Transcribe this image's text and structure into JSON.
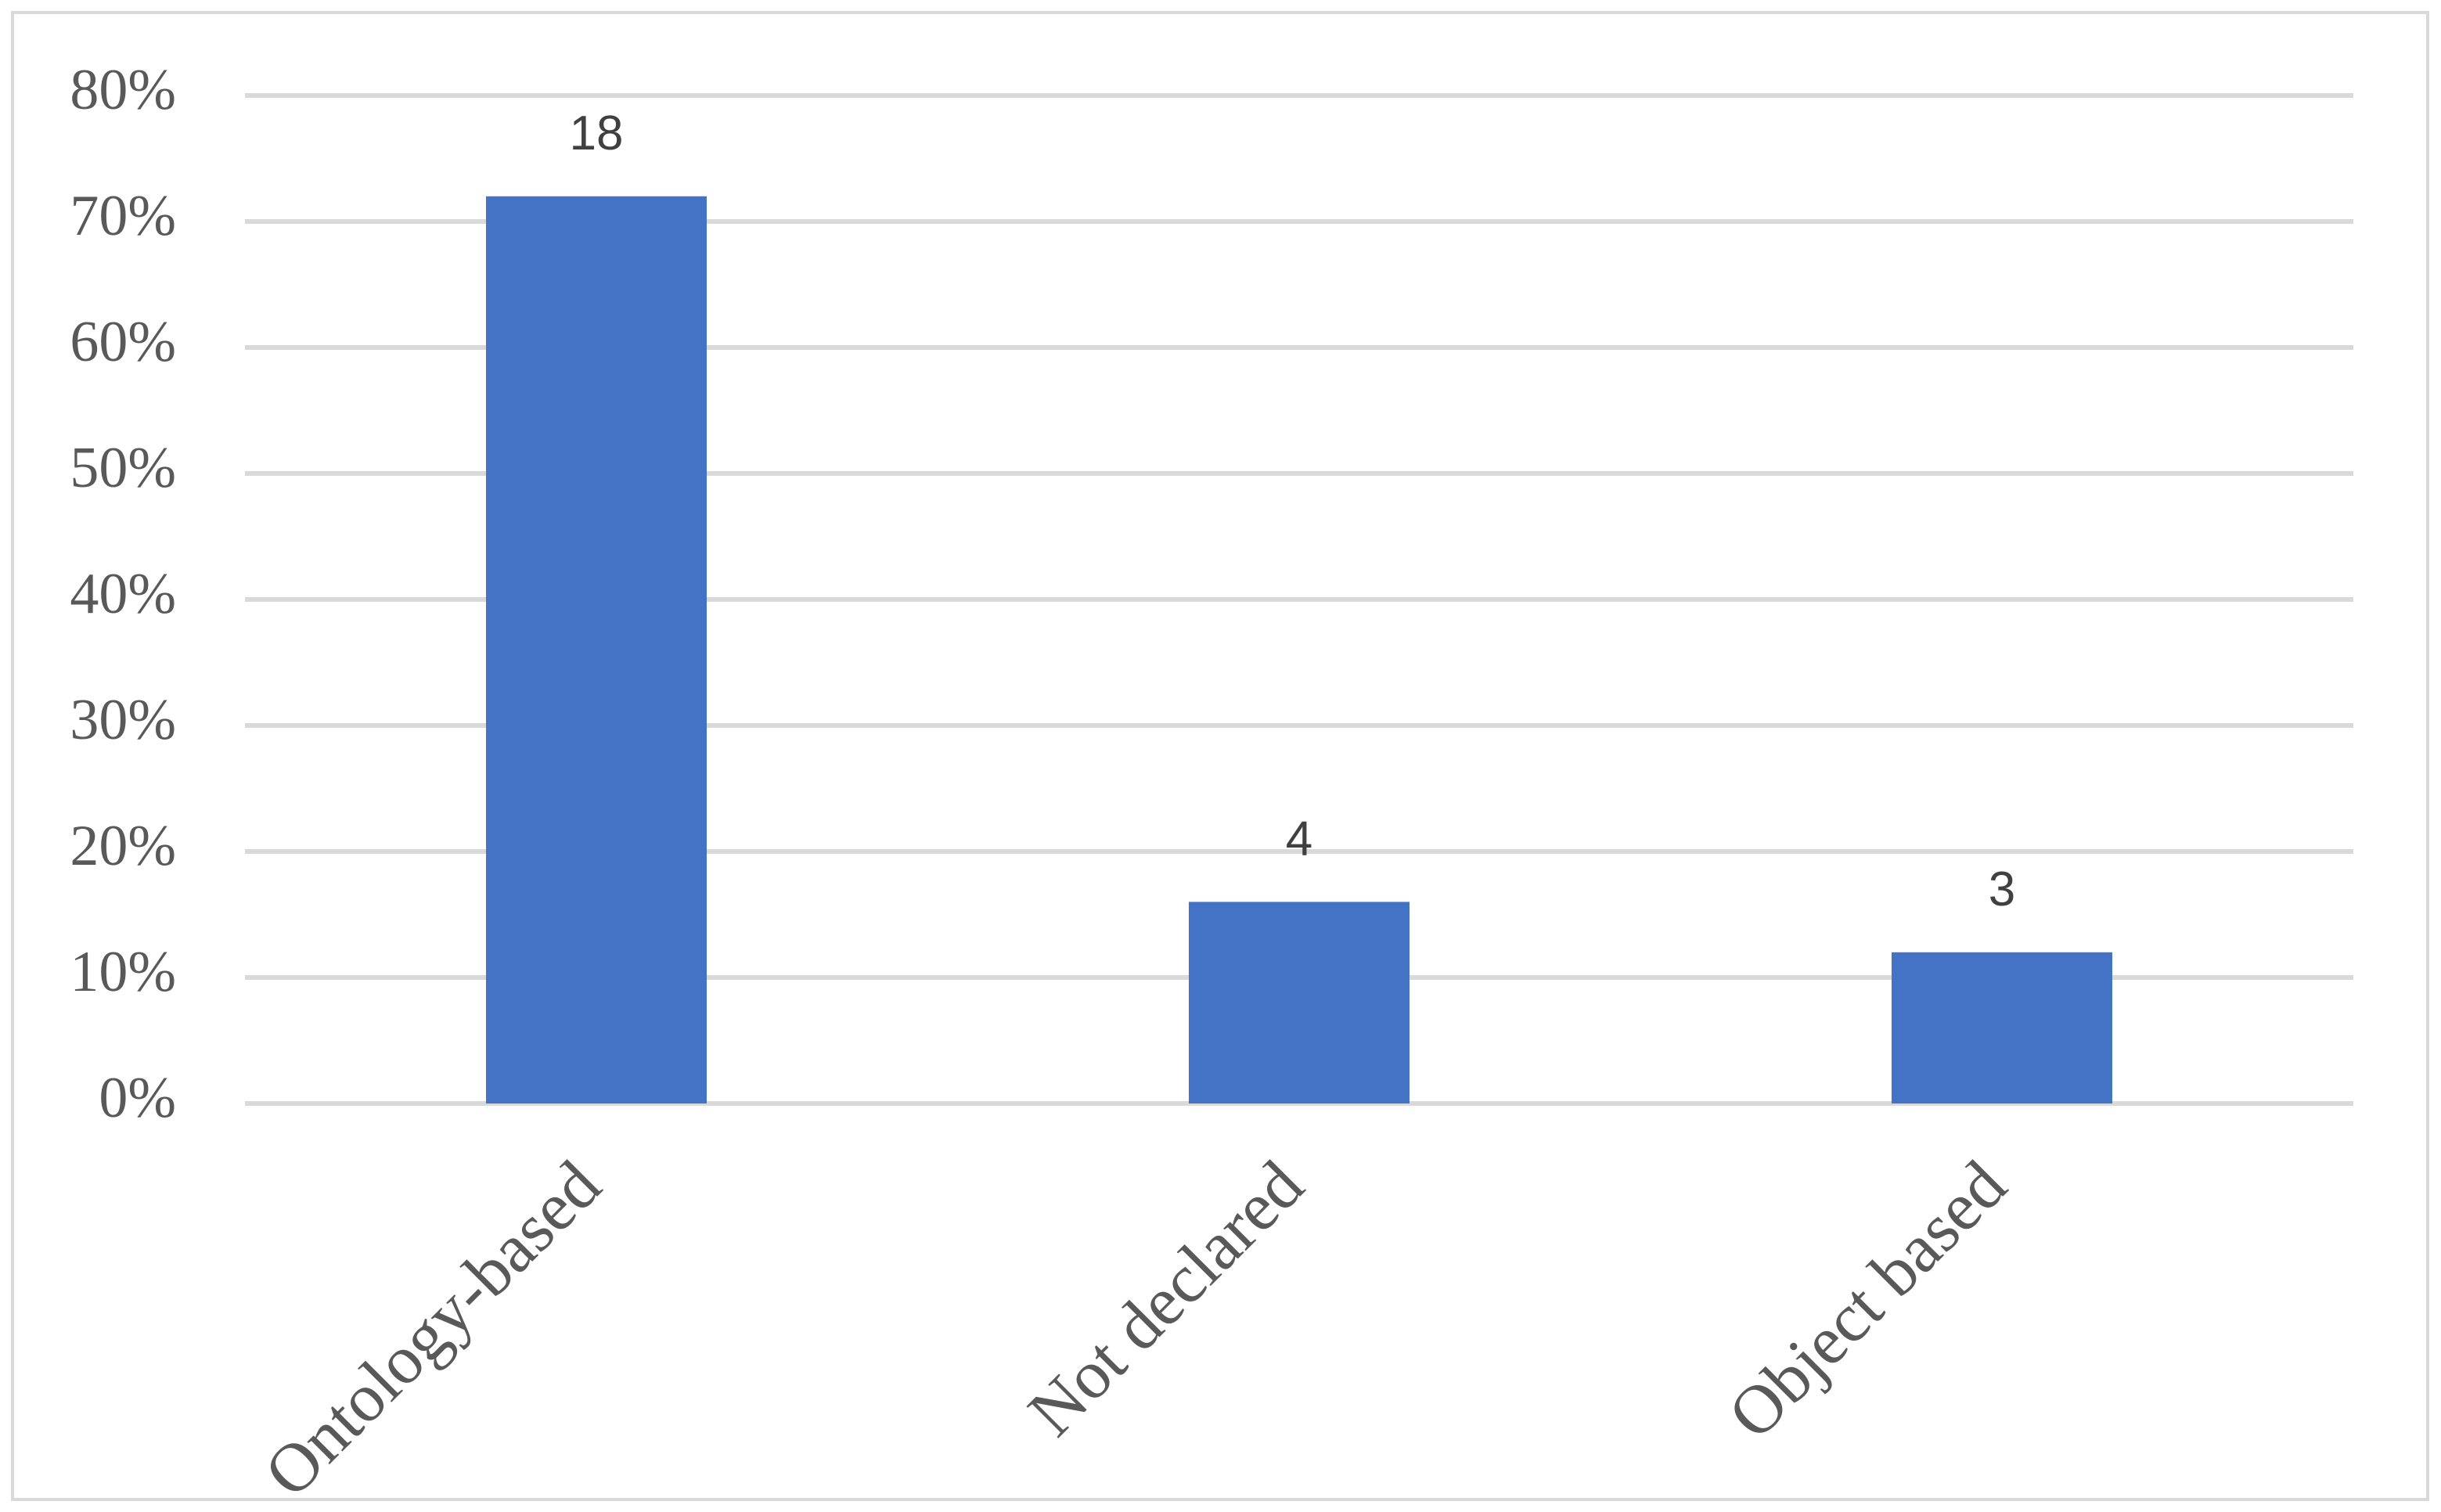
{
  "chart_data": {
    "type": "bar",
    "categories": [
      "Ontology-based",
      "Not declared",
      "Object based"
    ],
    "values": [
      72,
      16,
      12
    ],
    "counts": [
      18,
      4,
      3
    ],
    "color": "#4472c4",
    "ylim": [
      0,
      80
    ],
    "yticks": [
      {
        "value": 0,
        "label": "0%"
      },
      {
        "value": 10,
        "label": "10%"
      },
      {
        "value": 20,
        "label": "20%"
      },
      {
        "value": 30,
        "label": "30%"
      },
      {
        "value": 40,
        "label": "40%"
      },
      {
        "value": 50,
        "label": "50%"
      },
      {
        "value": 60,
        "label": "60%"
      },
      {
        "value": 70,
        "label": "70%"
      },
      {
        "value": 80,
        "label": "80%"
      }
    ],
    "grid": true
  }
}
